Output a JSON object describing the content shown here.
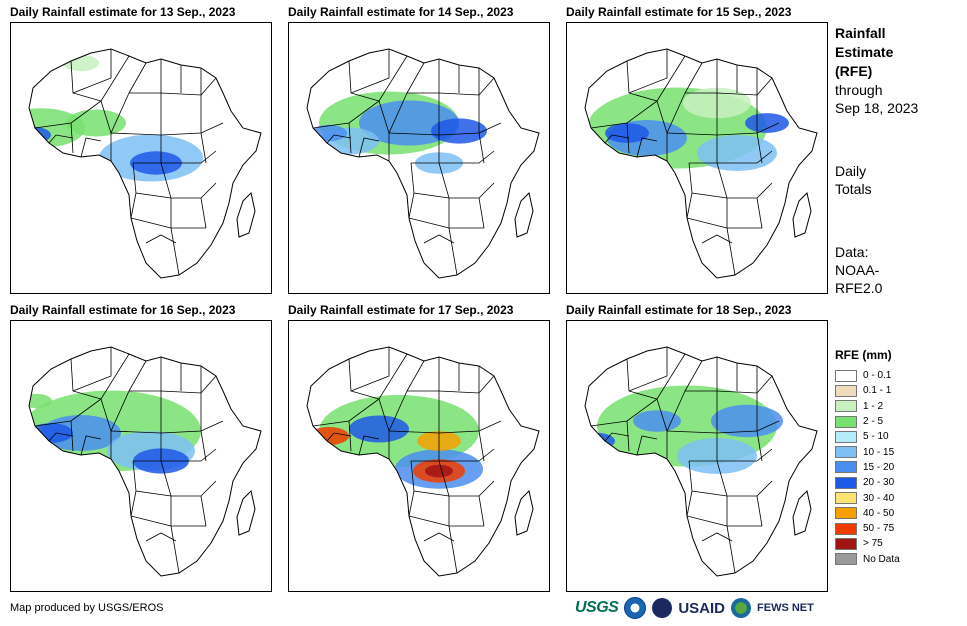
{
  "panels": [
    {
      "title": "Daily Rainfall estimate for 13 Sep., 2023"
    },
    {
      "title": "Daily Rainfall estimate for 14 Sep., 2023"
    },
    {
      "title": "Daily Rainfall estimate for 15 Sep., 2023"
    },
    {
      "title": "Daily Rainfall estimate for 16 Sep., 2023"
    },
    {
      "title": "Daily Rainfall estimate for 17 Sep., 2023"
    },
    {
      "title": "Daily Rainfall estimate for 18 Sep., 2023"
    }
  ],
  "side": {
    "title_line1": "Rainfall",
    "title_line2": "Estimate",
    "title_line3": "(RFE)",
    "through_line1": "through",
    "through_line2": "Sep 18, 2023",
    "totals_line1": "Daily",
    "totals_line2": "Totals",
    "data_line1": "Data:",
    "data_line2": "NOAA-",
    "data_line3": "RFE2.0"
  },
  "legend": {
    "title": "RFE (mm)",
    "items": [
      {
        "label": "0 - 0.1",
        "color": "#ffffff"
      },
      {
        "label": "0.1 - 1",
        "color": "#eedcbc"
      },
      {
        "label": "1 - 2",
        "color": "#c8f0c0"
      },
      {
        "label": "2 - 5",
        "color": "#78e070"
      },
      {
        "label": "5 - 10",
        "color": "#b4ecf8"
      },
      {
        "label": "10 - 15",
        "color": "#7ec0f4"
      },
      {
        "label": "15 - 20",
        "color": "#4b8ef0"
      },
      {
        "label": "20 - 30",
        "color": "#1e58e6"
      },
      {
        "label": "30 - 40",
        "color": "#fce472"
      },
      {
        "label": "40 - 50",
        "color": "#f4a000"
      },
      {
        "label": "50 - 75",
        "color": "#f03c00"
      },
      {
        "label": "> 75",
        "color": "#a01414"
      },
      {
        "label": "No Data",
        "color": "#9a9a9a"
      }
    ]
  },
  "footer": {
    "credit": "Map produced by USGS/EROS"
  },
  "logos": {
    "usgs": "USGS",
    "usaid": "USAID",
    "fews": "FEWS NET"
  }
}
